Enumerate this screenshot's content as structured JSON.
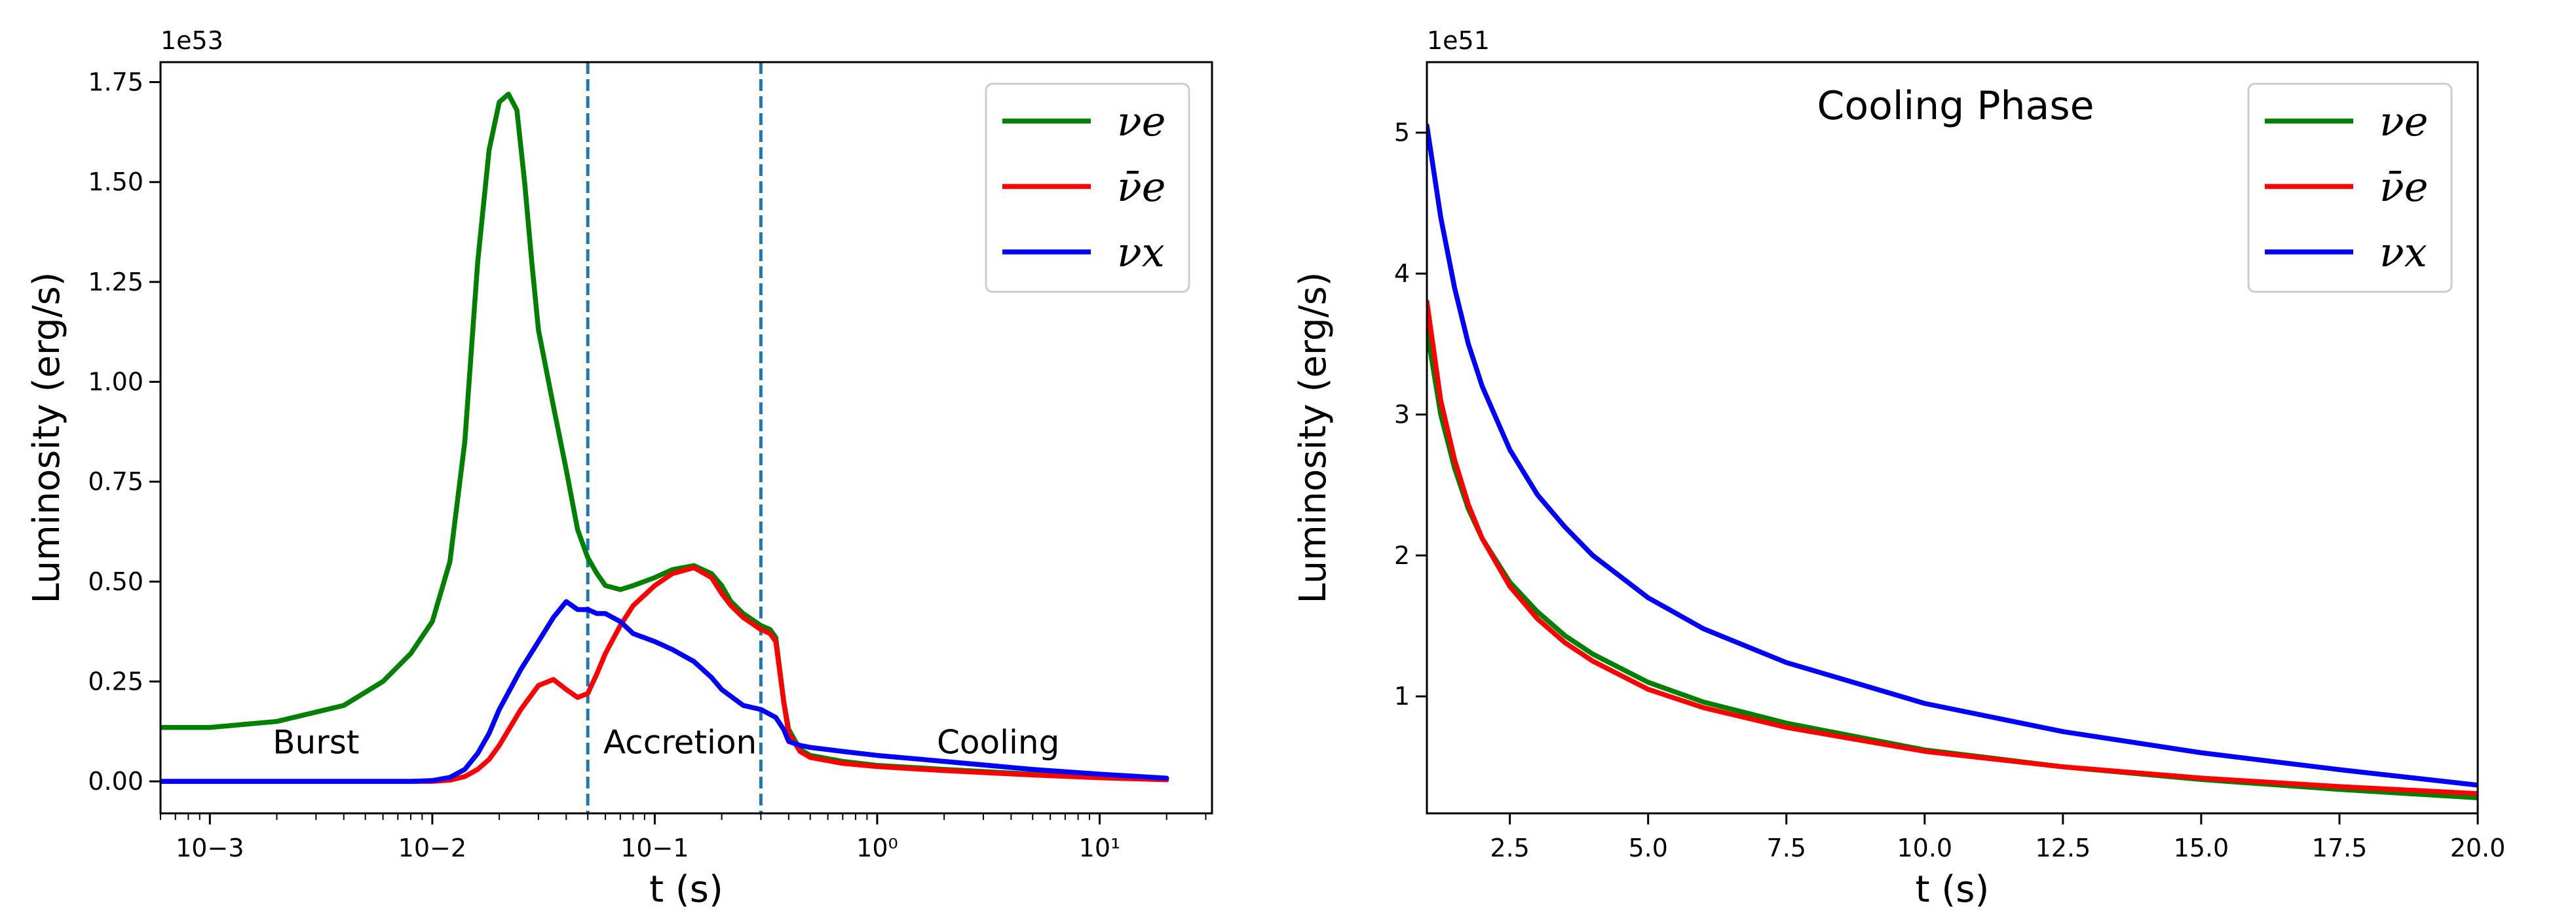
{
  "chart_data": [
    {
      "type": "line",
      "xscale": "log",
      "xlabel": "t (s)",
      "ylabel": "Luminosity (erg/s)",
      "y_offset_label": "1e53",
      "xlim": [
        0.0006,
        32
      ],
      "ylim": [
        -0.08,
        1.8
      ],
      "x_ticks": [
        {
          "value": 0.001,
          "label": "10−3"
        },
        {
          "value": 0.01,
          "label": "10−2"
        },
        {
          "value": 0.1,
          "label": "10−1"
        },
        {
          "value": 1,
          "label": "10⁰"
        },
        {
          "value": 10,
          "label": "10¹"
        }
      ],
      "y_ticks": [
        {
          "value": 0.0,
          "label": "0.00"
        },
        {
          "value": 0.25,
          "label": "0.25"
        },
        {
          "value": 0.5,
          "label": "0.50"
        },
        {
          "value": 0.75,
          "label": "0.75"
        },
        {
          "value": 1.0,
          "label": "1.00"
        },
        {
          "value": 1.25,
          "label": "1.25"
        },
        {
          "value": 1.5,
          "label": "1.50"
        },
        {
          "value": 1.75,
          "label": "1.75"
        }
      ],
      "vlines": [
        0.05,
        0.3
      ],
      "region_labels": [
        {
          "text": "Burst",
          "x": 0.003,
          "y": 0.07
        },
        {
          "text": "Accretion",
          "x": 0.13,
          "y": 0.07
        },
        {
          "text": "Cooling",
          "x": 3.5,
          "y": 0.07
        }
      ],
      "legend": {
        "position": "top-right",
        "entries": [
          "νe",
          "ν̄e",
          "νx"
        ]
      },
      "series": [
        {
          "name": "νe",
          "color": "#008000",
          "x": [
            0.0006,
            0.001,
            0.002,
            0.004,
            0.006,
            0.008,
            0.01,
            0.012,
            0.014,
            0.016,
            0.018,
            0.02,
            0.022,
            0.024,
            0.026,
            0.028,
            0.03,
            0.035,
            0.04,
            0.045,
            0.05,
            0.055,
            0.06,
            0.07,
            0.08,
            0.1,
            0.12,
            0.15,
            0.18,
            0.2,
            0.22,
            0.25,
            0.3,
            0.33,
            0.35,
            0.38,
            0.4,
            0.45,
            0.5,
            0.7,
            1,
            2,
            5,
            10,
            20
          ],
          "y": [
            0.135,
            0.135,
            0.15,
            0.19,
            0.25,
            0.32,
            0.4,
            0.55,
            0.85,
            1.3,
            1.58,
            1.7,
            1.72,
            1.68,
            1.5,
            1.3,
            1.13,
            0.94,
            0.78,
            0.63,
            0.56,
            0.52,
            0.49,
            0.48,
            0.49,
            0.51,
            0.53,
            0.54,
            0.52,
            0.49,
            0.45,
            0.42,
            0.39,
            0.38,
            0.36,
            0.2,
            0.13,
            0.08,
            0.065,
            0.05,
            0.04,
            0.03,
            0.018,
            0.01,
            0.005
          ]
        },
        {
          "name": "ν̄e",
          "color": "#ff0000",
          "x": [
            0.0006,
            0.001,
            0.005,
            0.01,
            0.012,
            0.014,
            0.016,
            0.018,
            0.02,
            0.025,
            0.03,
            0.035,
            0.04,
            0.045,
            0.05,
            0.055,
            0.06,
            0.07,
            0.08,
            0.1,
            0.12,
            0.15,
            0.18,
            0.2,
            0.22,
            0.25,
            0.3,
            0.33,
            0.35,
            0.38,
            0.4,
            0.45,
            0.5,
            0.7,
            1,
            2,
            5,
            10,
            20
          ],
          "y": [
            0.0,
            0.0,
            0.0,
            0.0,
            0.003,
            0.012,
            0.03,
            0.055,
            0.09,
            0.18,
            0.24,
            0.255,
            0.23,
            0.21,
            0.22,
            0.27,
            0.32,
            0.39,
            0.44,
            0.49,
            0.52,
            0.535,
            0.51,
            0.47,
            0.44,
            0.41,
            0.38,
            0.37,
            0.35,
            0.2,
            0.12,
            0.075,
            0.06,
            0.045,
            0.037,
            0.027,
            0.016,
            0.009,
            0.004
          ]
        },
        {
          "name": "νx",
          "color": "#0000ff",
          "x": [
            0.0006,
            0.001,
            0.005,
            0.008,
            0.01,
            0.012,
            0.014,
            0.016,
            0.018,
            0.02,
            0.025,
            0.03,
            0.035,
            0.04,
            0.045,
            0.05,
            0.055,
            0.06,
            0.07,
            0.08,
            0.1,
            0.12,
            0.15,
            0.18,
            0.2,
            0.25,
            0.3,
            0.35,
            0.38,
            0.4,
            0.45,
            0.5,
            0.7,
            1,
            2,
            5,
            10,
            20
          ],
          "y": [
            0.0,
            0.0,
            0.0,
            0.0,
            0.002,
            0.01,
            0.03,
            0.07,
            0.12,
            0.18,
            0.28,
            0.35,
            0.41,
            0.45,
            0.43,
            0.43,
            0.42,
            0.42,
            0.4,
            0.37,
            0.35,
            0.33,
            0.3,
            0.26,
            0.23,
            0.19,
            0.18,
            0.16,
            0.13,
            0.1,
            0.09,
            0.085,
            0.075,
            0.065,
            0.05,
            0.03,
            0.018,
            0.008
          ]
        }
      ]
    },
    {
      "type": "line",
      "title": "Cooling Phase",
      "xlabel": "t (s)",
      "ylabel": "Luminosity (erg/s)",
      "y_offset_label": "1e51",
      "xlim": [
        1.0,
        20.0
      ],
      "ylim": [
        0.17,
        5.5
      ],
      "x_ticks": [
        {
          "value": 2.5,
          "label": "2.5"
        },
        {
          "value": 5.0,
          "label": "5.0"
        },
        {
          "value": 7.5,
          "label": "7.5"
        },
        {
          "value": 10.0,
          "label": "10.0"
        },
        {
          "value": 12.5,
          "label": "12.5"
        },
        {
          "value": 15.0,
          "label": "15.0"
        },
        {
          "value": 17.5,
          "label": "17.5"
        },
        {
          "value": 20.0,
          "label": "20.0"
        }
      ],
      "y_ticks": [
        {
          "value": 1,
          "label": "1"
        },
        {
          "value": 2,
          "label": "2"
        },
        {
          "value": 3,
          "label": "3"
        },
        {
          "value": 4,
          "label": "4"
        },
        {
          "value": 5,
          "label": "5"
        }
      ],
      "legend": {
        "position": "top-right",
        "entries": [
          "νe",
          "ν̄e",
          "νx"
        ]
      },
      "series": [
        {
          "name": "νe",
          "color": "#008000",
          "x": [
            1.0,
            1.25,
            1.5,
            1.75,
            2.0,
            2.5,
            3.0,
            3.5,
            4.0,
            5.0,
            6.0,
            7.5,
            10.0,
            12.5,
            15.0,
            17.5,
            20.0
          ],
          "y": [
            3.6,
            3.0,
            2.62,
            2.33,
            2.12,
            1.81,
            1.6,
            1.43,
            1.3,
            1.1,
            0.96,
            0.81,
            0.62,
            0.5,
            0.41,
            0.34,
            0.28
          ]
        },
        {
          "name": "ν̄e",
          "color": "#ff0000",
          "x": [
            1.0,
            1.25,
            1.5,
            1.75,
            2.0,
            2.5,
            3.0,
            3.5,
            4.0,
            5.0,
            6.0,
            7.5,
            10.0,
            12.5,
            15.0,
            17.5,
            20.0
          ],
          "y": [
            3.8,
            3.1,
            2.68,
            2.36,
            2.12,
            1.78,
            1.55,
            1.38,
            1.25,
            1.05,
            0.92,
            0.78,
            0.61,
            0.5,
            0.42,
            0.36,
            0.31
          ]
        },
        {
          "name": "νx",
          "color": "#0000ff",
          "x": [
            1.0,
            1.25,
            1.5,
            1.75,
            2.0,
            2.5,
            3.0,
            3.5,
            4.0,
            5.0,
            6.0,
            7.5,
            10.0,
            12.5,
            15.0,
            17.5,
            20.0
          ],
          "y": [
            5.05,
            4.4,
            3.9,
            3.5,
            3.2,
            2.75,
            2.43,
            2.2,
            2.0,
            1.7,
            1.48,
            1.24,
            0.95,
            0.75,
            0.6,
            0.48,
            0.37
          ]
        }
      ]
    }
  ]
}
